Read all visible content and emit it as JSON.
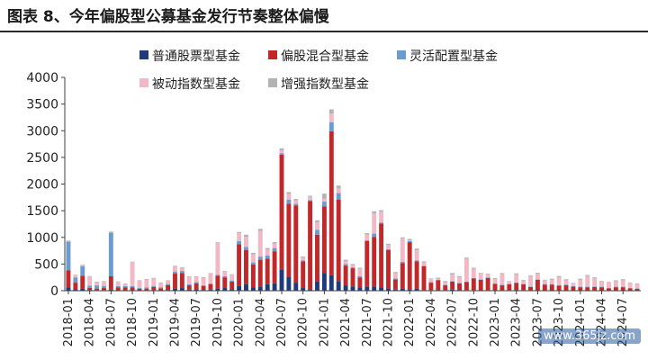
{
  "title": "图表 8、今年偏股型公募基金发行节奏整体偏慢",
  "watermark": "www.365jz.com",
  "chart_data": {
    "type": "bar",
    "stacked": true,
    "ylim": [
      0,
      4000
    ],
    "yticks": [
      0,
      500,
      1000,
      1500,
      2000,
      2500,
      3000,
      3500,
      4000
    ],
    "grid": false,
    "legend": "top-center",
    "xtick_labels": [
      "2018-01",
      "2018-04",
      "2018-07",
      "2018-10",
      "2019-01",
      "2019-04",
      "2019-07",
      "2019-10",
      "2020-01",
      "2020-04",
      "2020-07",
      "2020-10",
      "2021-01",
      "2021-04",
      "2021-07",
      "2021-10",
      "2022-01",
      "2022-04",
      "2022-07",
      "2022-10",
      "2023-01",
      "2023-04",
      "2023-07",
      "2023-10",
      "2024-01",
      "2024-04",
      "2024-07"
    ],
    "categories": [
      "2018-01",
      "2018-02",
      "2018-03",
      "2018-04",
      "2018-05",
      "2018-06",
      "2018-07",
      "2018-08",
      "2018-09",
      "2018-10",
      "2018-11",
      "2018-12",
      "2019-01",
      "2019-02",
      "2019-03",
      "2019-04",
      "2019-05",
      "2019-06",
      "2019-07",
      "2019-08",
      "2019-09",
      "2019-10",
      "2019-11",
      "2019-12",
      "2020-01",
      "2020-02",
      "2020-03",
      "2020-04",
      "2020-05",
      "2020-06",
      "2020-07",
      "2020-08",
      "2020-09",
      "2020-10",
      "2020-11",
      "2020-12",
      "2021-01",
      "2021-02",
      "2021-03",
      "2021-04",
      "2021-05",
      "2021-06",
      "2021-07",
      "2021-08",
      "2021-09",
      "2021-10",
      "2021-11",
      "2021-12",
      "2022-01",
      "2022-02",
      "2022-03",
      "2022-04",
      "2022-05",
      "2022-06",
      "2022-07",
      "2022-08",
      "2022-09",
      "2022-10",
      "2022-11",
      "2022-12",
      "2023-01",
      "2023-02",
      "2023-03",
      "2023-04",
      "2023-05",
      "2023-06",
      "2023-07",
      "2023-08",
      "2023-09",
      "2023-10",
      "2023-11",
      "2023-12",
      "2024-01",
      "2024-02",
      "2024-03",
      "2024-04",
      "2024-05",
      "2024-06",
      "2024-07",
      "2024-08",
      "2024-09"
    ],
    "series": [
      {
        "name": "普通股票型基金",
        "color": "#1f3a7a",
        "values": [
          60,
          30,
          40,
          15,
          10,
          10,
          20,
          5,
          5,
          5,
          5,
          10,
          10,
          5,
          15,
          40,
          50,
          20,
          30,
          15,
          20,
          40,
          50,
          30,
          90,
          120,
          60,
          80,
          120,
          140,
          400,
          260,
          150,
          50,
          30,
          170,
          330,
          290,
          180,
          100,
          80,
          60,
          80,
          80,
          60,
          40,
          20,
          40,
          30,
          40,
          10,
          10,
          15,
          10,
          20,
          15,
          10,
          10,
          5,
          10,
          5,
          10,
          10,
          15,
          10,
          10,
          5,
          5,
          5,
          5,
          5,
          5,
          5,
          5,
          10,
          5,
          5,
          5,
          5,
          5,
          5
        ]
      },
      {
        "name": "偏股混合型基金",
        "color": "#c0282a",
        "values": [
          320,
          120,
          240,
          40,
          30,
          40,
          250,
          60,
          60,
          60,
          30,
          30,
          60,
          40,
          90,
          280,
          280,
          80,
          110,
          70,
          100,
          240,
          200,
          140,
          780,
          640,
          430,
          500,
          480,
          600,
          2150,
          1370,
          1450,
          500,
          1650,
          880,
          1250,
          2700,
          1530,
          370,
          340,
          190,
          850,
          930,
          1200,
          720,
          190,
          480,
          880,
          510,
          450,
          140,
          180,
          90,
          150,
          120,
          150,
          220,
          200,
          230,
          120,
          90,
          110,
          130,
          110,
          60,
          200,
          110,
          110,
          90,
          100,
          70,
          60,
          60,
          60,
          60,
          40,
          60,
          60,
          40,
          30
        ]
      },
      {
        "name": "灵活配置型基金",
        "color": "#6a9cd0",
        "values": [
          540,
          100,
          180,
          40,
          60,
          40,
          820,
          20,
          20,
          20,
          20,
          20,
          20,
          20,
          20,
          40,
          40,
          20,
          20,
          20,
          20,
          20,
          20,
          20,
          60,
          60,
          40,
          60,
          60,
          60,
          30,
          80,
          30,
          20,
          20,
          90,
          90,
          170,
          120,
          30,
          20,
          20,
          20,
          60,
          20,
          20,
          20,
          20,
          20,
          20,
          10,
          10,
          10,
          10,
          10,
          10,
          10,
          10,
          10,
          10,
          10,
          10,
          10,
          10,
          10,
          10,
          10,
          10,
          10,
          10,
          10,
          10,
          10,
          10,
          10,
          10,
          10,
          10,
          10,
          10,
          10
        ]
      },
      {
        "name": "被动指数型基金",
        "color": "#f2b8c6",
        "values": [
          10,
          40,
          20,
          170,
          60,
          80,
          10,
          80,
          40,
          450,
          130,
          150,
          140,
          80,
          60,
          100,
          60,
          140,
          100,
          140,
          180,
          600,
          90,
          110,
          150,
          190,
          150,
          480,
          110,
          80,
          50,
          100,
          60,
          50,
          60,
          140,
          60,
          160,
          90,
          50,
          40,
          140,
          100,
          380,
          200,
          80,
          100,
          440,
          10,
          190,
          60,
          60,
          20,
          50,
          120,
          110,
          430,
          170,
          110,
          60,
          80,
          200,
          40,
          150,
          50,
          200,
          100,
          70,
          80,
          150,
          80,
          50,
          130,
          200,
          150,
          100,
          100,
          100,
          120,
          90,
          80
        ]
      },
      {
        "name": "增强指数型基金",
        "color": "#b3b3b3",
        "values": [
          10,
          10,
          10,
          10,
          10,
          10,
          10,
          10,
          10,
          10,
          10,
          10,
          10,
          10,
          10,
          10,
          10,
          10,
          10,
          10,
          10,
          10,
          10,
          10,
          20,
          40,
          30,
          40,
          30,
          30,
          40,
          40,
          30,
          20,
          20,
          40,
          90,
          80,
          50,
          30,
          20,
          20,
          30,
          40,
          30,
          20,
          20,
          20,
          30,
          30,
          20,
          10,
          20,
          20,
          30,
          20,
          20,
          20,
          10,
          10,
          20,
          20,
          10,
          20,
          20,
          10,
          20,
          10,
          20,
          20,
          20,
          10,
          20,
          20,
          20,
          10,
          10,
          20,
          20,
          10,
          10
        ]
      }
    ]
  }
}
